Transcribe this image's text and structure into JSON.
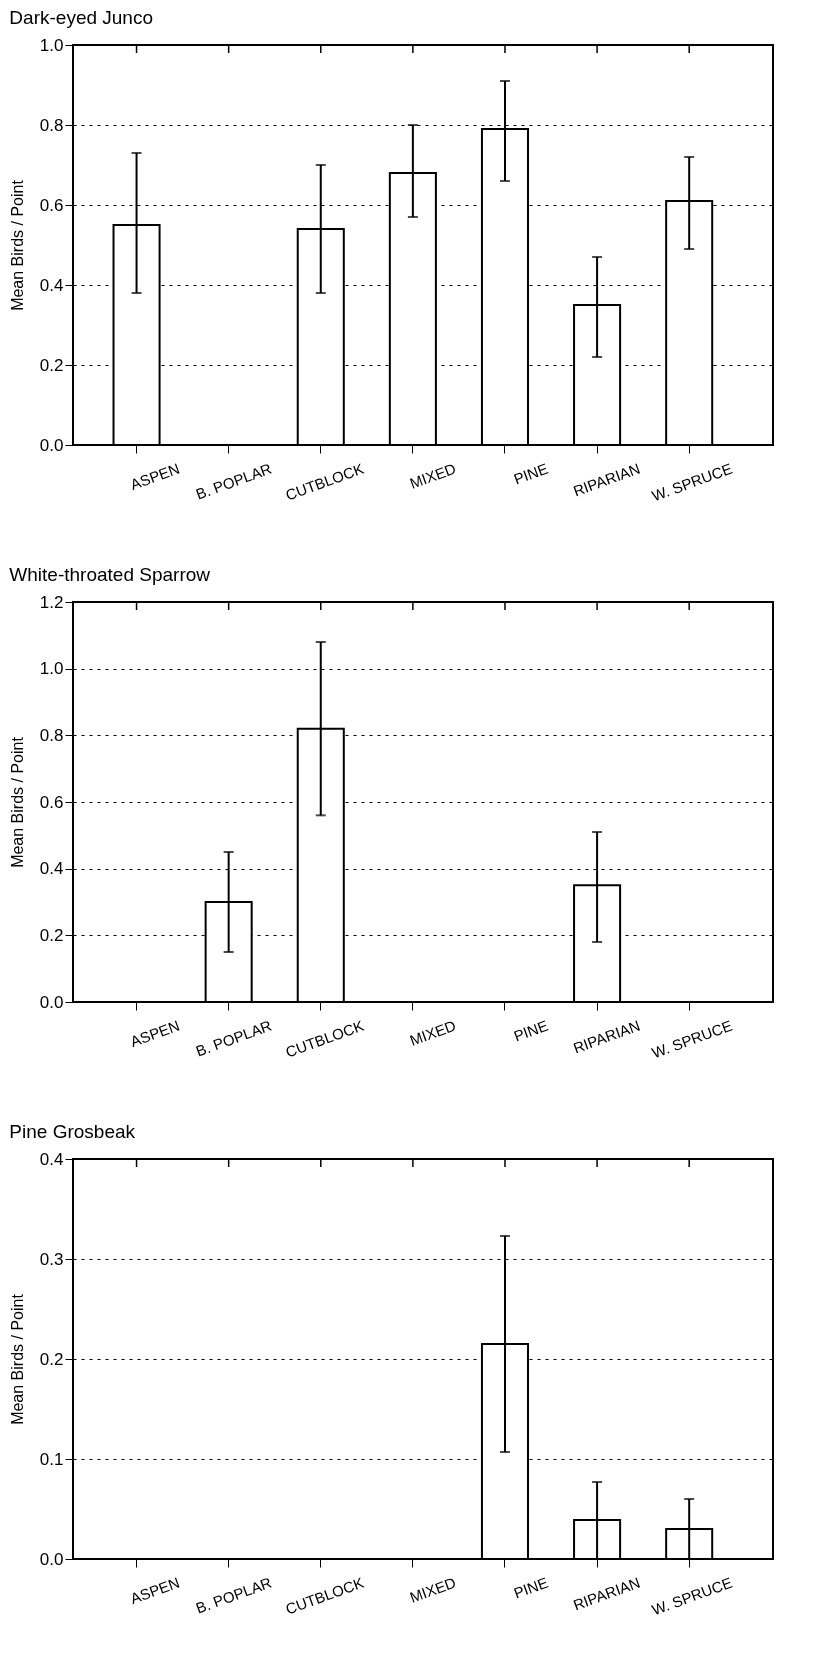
{
  "chart_data": [
    {
      "type": "bar",
      "title": "Dark-eyed Junco",
      "ylabel": "Mean Birds / Point",
      "color": "#ffffff",
      "categories": [
        "ASPEN",
        "B. POPLAR",
        "CUTBLOCK",
        "MIXED",
        "PINE",
        "RIPARIAN",
        "W. SPRUCE"
      ],
      "values": [
        0.55,
        null,
        0.54,
        0.68,
        0.79,
        0.35,
        0.61
      ],
      "errors": [
        [
          0.38,
          0.73
        ],
        null,
        [
          0.38,
          0.7
        ],
        [
          0.57,
          0.8
        ],
        [
          0.66,
          0.91
        ],
        [
          0.22,
          0.47
        ],
        [
          0.49,
          0.72
        ]
      ],
      "ylim": [
        0,
        1.0
      ],
      "yticks": [
        {
          "value": 0,
          "label": "0.0"
        },
        {
          "value": 0.2,
          "label": "0.2"
        },
        {
          "value": 0.4,
          "label": "0.4"
        },
        {
          "value": 0.6,
          "label": "0.6"
        },
        {
          "value": 0.8,
          "label": "0.8"
        },
        {
          "value": 1.0,
          "label": "1.0"
        }
      ],
      "grid": "y"
    },
    {
      "type": "bar",
      "title": "White-throated Sparrow",
      "ylabel": "Mean Birds / Point",
      "color": "#ffffff",
      "categories": [
        "ASPEN",
        "B. POPLAR",
        "CUTBLOCK",
        "MIXED",
        "PINE",
        "RIPARIAN",
        "W. SPRUCE"
      ],
      "values": [
        null,
        0.3,
        0.82,
        null,
        null,
        0.35,
        null
      ],
      "errors": [
        null,
        [
          0.15,
          0.45
        ],
        [
          0.56,
          1.08
        ],
        null,
        null,
        [
          0.18,
          0.51
        ],
        null
      ],
      "ylim": [
        0,
        1.2
      ],
      "yticks": [
        {
          "value": 0,
          "label": "0.0"
        },
        {
          "value": 0.2,
          "label": "0.2"
        },
        {
          "value": 0.4,
          "label": "0.4"
        },
        {
          "value": 0.6,
          "label": "0.6"
        },
        {
          "value": 0.8,
          "label": "0.8"
        },
        {
          "value": 1.0,
          "label": "1.0"
        },
        {
          "value": 1.2,
          "label": "1.2"
        }
      ],
      "grid": "y"
    },
    {
      "type": "bar",
      "title": "Pine Grosbeak",
      "ylabel": "Mean Birds / Point",
      "color": "#ffffff",
      "categories": [
        "ASPEN",
        "B. POPLAR",
        "CUTBLOCK",
        "MIXED",
        "PINE",
        "RIPARIAN",
        "W. SPRUCE"
      ],
      "values": [
        null,
        null,
        null,
        null,
        0.215,
        0.039,
        0.03
      ],
      "errors": [
        null,
        null,
        null,
        null,
        [
          0.107,
          0.323
        ],
        [
          0.0,
          0.077
        ],
        [
          0.0,
          0.06
        ]
      ],
      "ylim": [
        0,
        0.4
      ],
      "yticks": [
        {
          "value": 0,
          "label": "0.0"
        },
        {
          "value": 0.1,
          "label": "0.1"
        },
        {
          "value": 0.2,
          "label": "0.2"
        },
        {
          "value": 0.3,
          "label": "0.3"
        },
        {
          "value": 0.4,
          "label": "0.4"
        }
      ],
      "grid": "y"
    }
  ]
}
